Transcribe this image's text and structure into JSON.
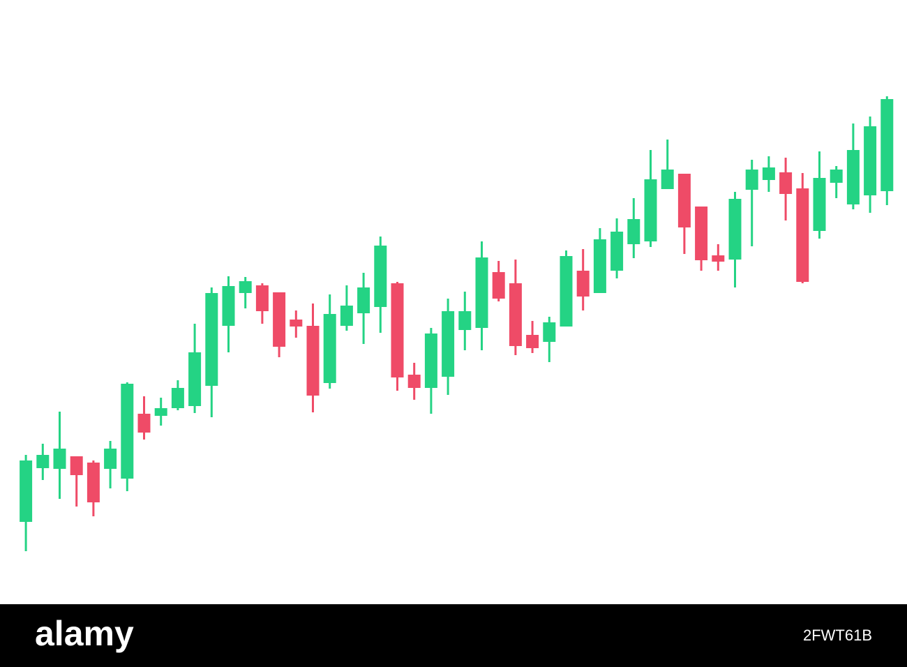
{
  "chart_data": {
    "type": "candlestick",
    "categories": [
      null,
      null,
      null,
      null,
      null,
      null,
      null,
      null,
      null,
      null,
      null,
      null,
      null,
      null,
      null,
      null,
      null,
      null,
      null,
      null,
      null,
      null,
      null,
      null,
      null,
      null,
      null,
      null,
      null,
      null,
      null,
      null,
      null,
      null,
      null,
      null,
      null,
      null,
      null,
      null,
      null,
      null,
      null,
      null,
      null,
      null,
      null,
      null,
      null,
      null,
      null,
      null
    ],
    "open": [
      118,
      195,
      194,
      212,
      203,
      194,
      180,
      273,
      270,
      281,
      284,
      313,
      399,
      446,
      457,
      447,
      408,
      399,
      317,
      399,
      417,
      426,
      460,
      329,
      310,
      326,
      393,
      396,
      476,
      460,
      386,
      376,
      398,
      478,
      446,
      478,
      516,
      520,
      595,
      617,
      570,
      500,
      494,
      594,
      608,
      619,
      596,
      535,
      604,
      573,
      586,
      592
    ],
    "high": [
      214,
      230,
      276,
      212,
      206,
      234,
      318,
      298,
      296,
      321,
      402,
      454,
      470,
      469,
      460,
      447,
      421,
      431,
      444,
      457,
      475,
      527,
      462,
      346,
      396,
      438,
      448,
      520,
      492,
      494,
      406,
      412,
      507,
      509,
      539,
      553,
      582,
      651,
      666,
      617,
      570,
      516,
      591,
      637,
      642,
      640,
      618,
      649,
      628,
      689,
      699,
      728
    ],
    "low": [
      76,
      178,
      151,
      140,
      126,
      166,
      162,
      236,
      256,
      278,
      274,
      268,
      361,
      424,
      402,
      354,
      382,
      275,
      309,
      392,
      373,
      389,
      306,
      293,
      273,
      300,
      364,
      364,
      434,
      357,
      360,
      347,
      398,
      421,
      446,
      467,
      496,
      512,
      595,
      502,
      478,
      478,
      454,
      513,
      591,
      550,
      460,
      524,
      582,
      566,
      561,
      572
    ],
    "close": [
      206,
      214,
      223,
      185,
      146,
      223,
      316,
      246,
      281,
      310,
      361,
      446,
      456,
      463,
      420,
      369,
      398,
      299,
      416,
      428,
      454,
      514,
      325,
      310,
      388,
      420,
      420,
      497,
      438,
      370,
      367,
      404,
      499,
      441,
      523,
      534,
      552,
      609,
      623,
      540,
      493,
      491,
      581,
      623,
      626,
      588,
      462,
      611,
      623,
      651,
      685,
      724
    ],
    "up_color": "#24d384",
    "down_color": "#ef4b67",
    "ylim": [
      0,
      866
    ]
  },
  "footer": {
    "brand": "alamy",
    "image_id": "2FWT61B"
  }
}
